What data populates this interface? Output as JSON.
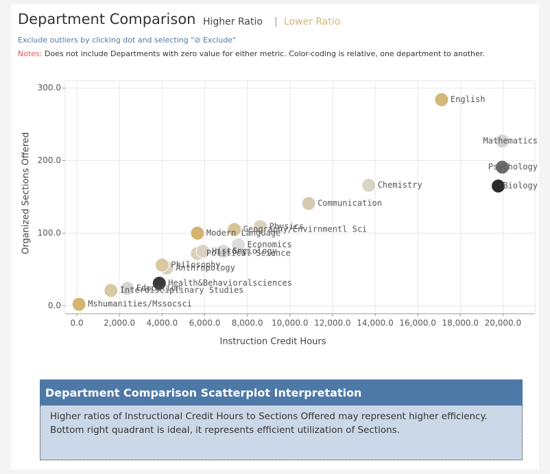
{
  "header": {
    "title": "Department Comparison",
    "higher": "Higher Ratio",
    "separator": "|",
    "lower": "Lower Ratio",
    "exclude_hint": "Exclude outliers by clicking dot and selecting \"⊘ Exclude\"",
    "notes_label": "Notes:",
    "notes_text": "Does not include Departments with zero value for either metric. Color-coding is relative, one department to another."
  },
  "chart_data": {
    "type": "scatter",
    "xlabel": "Instruction Credit Hours",
    "ylabel": "Organized Sections Offered",
    "labels": [
      "English",
      "Mathematics",
      "Psychology",
      "Biology",
      "Chemistry",
      "Communication",
      "Physics",
      "Geography/Envirnmentl Sci",
      "Modern Language",
      "Economics",
      "Sociology",
      "History",
      "Political Science",
      "Philosophy",
      "Anthropology",
      "Health&Behavioralsciences",
      "Education",
      "Interdisciplinary Studies",
      "Mshumanities/Mssocsci"
    ],
    "x": [
      17120,
      19970,
      19970,
      19780,
      13700,
      10880,
      8610,
      7390,
      5660,
      7580,
      6880,
      5920,
      5660,
      4000,
      4220,
      3870,
      2370,
      1600,
      100
    ],
    "values": [
      284,
      227,
      191,
      165,
      166,
      141,
      109,
      105,
      100,
      84,
      75,
      75,
      72,
      56,
      52,
      31,
      24,
      21,
      2
    ],
    "colors": [
      "#d4b77a",
      "#d3d3d3",
      "#6e6e6e",
      "#2b2b2b",
      "#d8d4c6",
      "#d6cbb2",
      "#dad2bf",
      "#d6c396",
      "#d4b56f",
      "#dcdcdc",
      "#d9d9d9",
      "#d8d2c2",
      "#d9d0b8",
      "#d8c9a0",
      "#d9d1bd",
      "#3a3a3a",
      "#d4d4d4",
      "#d7c9a3",
      "#d4b56f"
    ],
    "xlim": [
      -550,
      21500
    ],
    "ylim": [
      -11,
      310
    ],
    "xticks": [
      {
        "value": 0,
        "label": "0.0"
      },
      {
        "value": 2000,
        "label": "2,000.0"
      },
      {
        "value": 4000,
        "label": "4,000.0"
      },
      {
        "value": 6000,
        "label": "6,000.0"
      },
      {
        "value": 8000,
        "label": "8,000.0"
      },
      {
        "value": 10000,
        "label": "10,000.0"
      },
      {
        "value": 12000,
        "label": "12,000.0"
      },
      {
        "value": 14000,
        "label": "14,000.0"
      },
      {
        "value": 16000,
        "label": "16,000.0"
      },
      {
        "value": 18000,
        "label": "18,000.0"
      },
      {
        "value": 20000,
        "label": "20,000.0"
      }
    ],
    "yticks": [
      {
        "value": 0,
        "label": "0.0"
      },
      {
        "value": 100,
        "label": "100.0"
      },
      {
        "value": 200,
        "label": "200.0"
      },
      {
        "value": 300,
        "label": "300.0"
      }
    ],
    "grid": true
  },
  "panel": {
    "title": "Department Comparison Scatterplot Interpretation",
    "body": "Higher ratios of Instructional Credit Hours to Sections Offered may represent higher efficiency. Bottom right quadrant is ideal, it represents efficient utilization of Sections."
  }
}
